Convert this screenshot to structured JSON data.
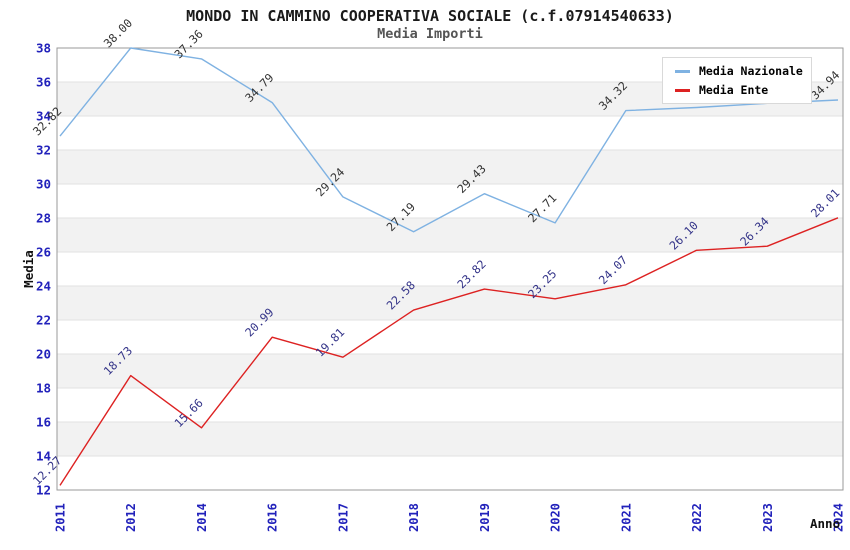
{
  "header": {
    "title": "MONDO IN CAMMINO COOPERATIVA SOCIALE (c.f.07914540633)",
    "subtitle": "Media Importi"
  },
  "chart_data": {
    "type": "line",
    "categories": [
      "2011",
      "2012",
      "2014",
      "2016",
      "2017",
      "2018",
      "2019",
      "2020",
      "2021",
      "2022",
      "2023",
      "2024"
    ],
    "series": [
      {
        "name": "Media Nazionale",
        "color": "#7fb2e2",
        "label_color": "#333333",
        "values": [
          32.82,
          38.0,
          37.36,
          34.79,
          29.24,
          27.19,
          29.43,
          27.71,
          34.32,
          34.5,
          34.75,
          34.94
        ],
        "labels": [
          "32.82",
          "38.00",
          "37.36",
          "34.79",
          "29.24",
          "27.19",
          "29.43",
          "27.71",
          "34.32",
          "",
          "",
          "34.94"
        ]
      },
      {
        "name": "Media Ente",
        "color": "#dd2222",
        "label_color": "#333388",
        "values": [
          12.27,
          18.73,
          15.66,
          20.99,
          19.81,
          22.58,
          23.82,
          23.25,
          24.07,
          26.1,
          26.34,
          28.01
        ],
        "labels": [
          "12.27",
          "18.73",
          "15.66",
          "20.99",
          "19.81",
          "22.58",
          "23.82",
          "23.25",
          "24.07",
          "26.10",
          "26.34",
          "28.01"
        ]
      }
    ],
    "xlabel": "Anno",
    "ylabel": "Media",
    "ylim": [
      12,
      38
    ],
    "ytick_step": 2,
    "yticks": [
      12,
      14,
      16,
      18,
      20,
      22,
      24,
      26,
      28,
      30,
      32,
      34,
      36,
      38
    ],
    "legend_position": "top-right",
    "grid": true,
    "band_colors": [
      "#ffffff",
      "#f2f2f2"
    ],
    "gridline_color": "#e2e2e2",
    "border_color": "#999999",
    "axis_text_color": "#2222bb",
    "axis_title_color": "#111111"
  }
}
